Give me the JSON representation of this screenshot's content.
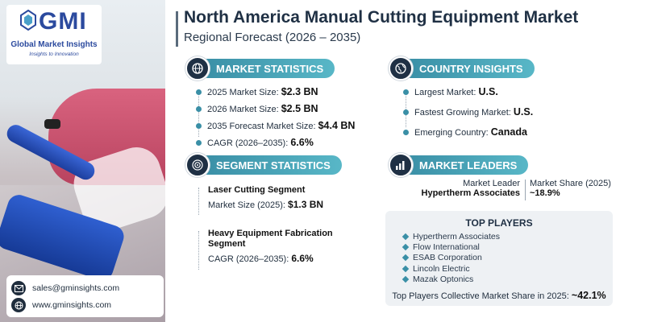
{
  "brand": {
    "logo_text": "GMI",
    "name": "Global Market Insights",
    "tagline": "Insights to Innovation"
  },
  "contact": {
    "email": "sales@gminsights.com",
    "website": "www.gminsights.com"
  },
  "header": {
    "title": "North America Manual Cutting Equipment Market",
    "subtitle": "Regional Forecast (2026 – 2035)"
  },
  "market_statistics": {
    "heading": "MARKET STATISTICS",
    "items": [
      {
        "label": "2025 Market Size: ",
        "value": "$2.3 BN"
      },
      {
        "label": "2026 Market Size: ",
        "value": "$2.5 BN"
      },
      {
        "label": "2035 Forecast Market Size: ",
        "value": "$4.4 BN"
      },
      {
        "label": "CAGR (2026–2035): ",
        "value": "6.6%"
      }
    ]
  },
  "country_insights": {
    "heading": "COUNTRY INSIGHTS",
    "items": [
      {
        "label": "Largest Market: ",
        "value": "U.S."
      },
      {
        "label": "Fastest Growing Market: ",
        "value": "U.S."
      },
      {
        "label": "Emerging Country: ",
        "value": "Canada"
      }
    ]
  },
  "segment_statistics": {
    "heading": "SEGMENT STATISTICS",
    "seg1_name": "Laser Cutting Segment",
    "seg1_metric": "Market Size (2025): ",
    "seg1_value": "$1.3 BN",
    "seg2_name_line1": "Heavy Equipment Fabrication",
    "seg2_name_line2": "Segment",
    "seg2_metric": "CAGR (2026–2035): ",
    "seg2_value": "6.6%"
  },
  "market_leaders": {
    "heading": "MARKET LEADERS",
    "leader_label": "Market Leader",
    "leader_name": "Hypertherm Associates",
    "share_label": "Market Share (2025)",
    "share_value": "~18.9%"
  },
  "top_players": {
    "heading": "TOP PLAYERS",
    "players": [
      "Hypertherm Associates",
      "Flow International",
      "ESAB Corporation",
      "Lincoln Electric",
      "Mazak Optonics"
    ],
    "collective_label": "Top Players Collective Market Share in 2025: ",
    "collective_value": "~42.1%"
  },
  "colors": {
    "accent": "#3a8fa6",
    "dark": "#1f3044",
    "brand_blue": "#2b4a9e"
  },
  "icons": [
    "globe-chart-icon",
    "globe-icon",
    "target-icon",
    "chart-person-icon",
    "email-icon",
    "web-icon",
    "gmi-logo-mark"
  ]
}
